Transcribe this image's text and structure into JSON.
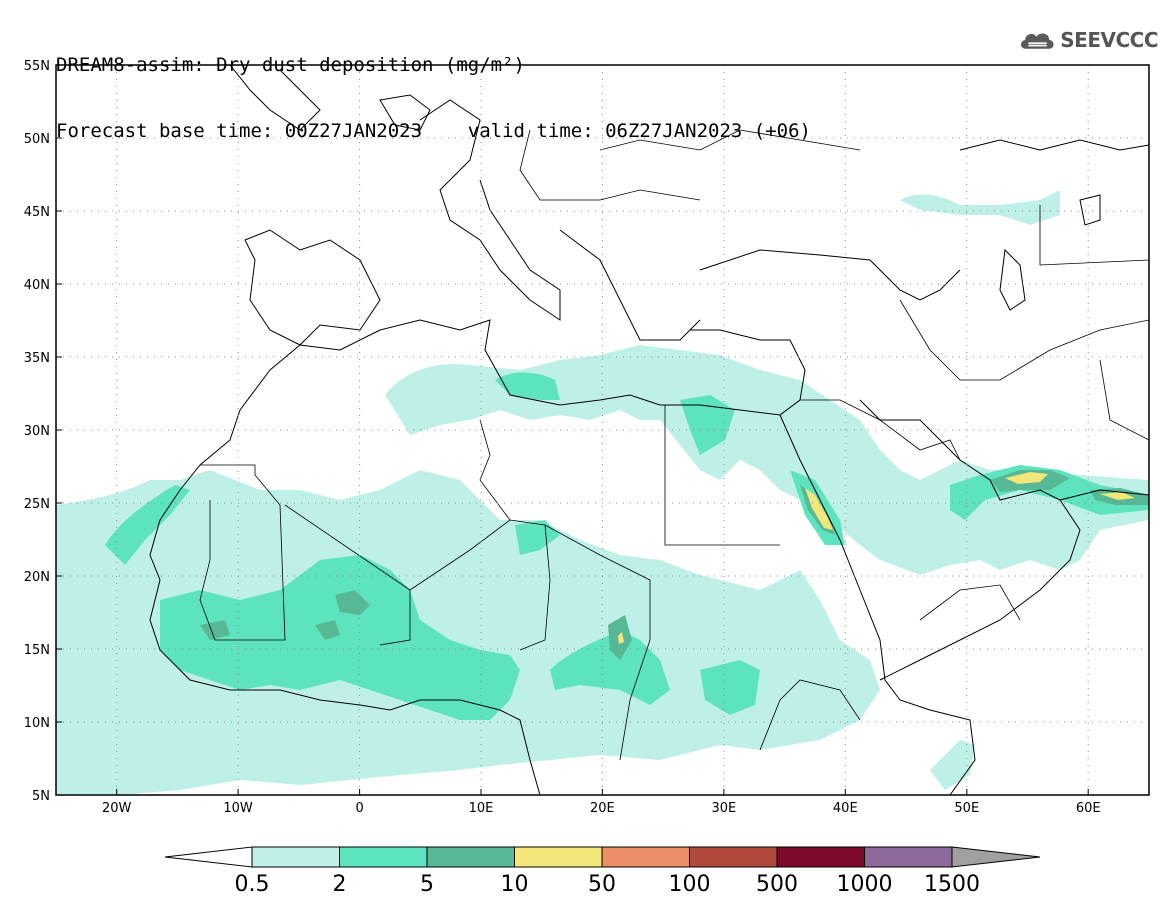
{
  "header": {
    "title_line1": "DREAM8-assim: Dry dust deposition (mg/m²)",
    "title_line2": "Forecast base time: 00Z27JAN2023    valid time: 06Z27JAN2023 (+06)"
  },
  "logo": {
    "text": "SEEVCCC",
    "icon": "cloud-icon"
  },
  "map": {
    "lon_range": [
      -25,
      65
    ],
    "lat_range": [
      5,
      55
    ],
    "lat_labels": [
      "55N",
      "50N",
      "45N",
      "40N",
      "35N",
      "30N",
      "25N",
      "20N",
      "15N",
      "10N",
      "5N"
    ],
    "lon_labels": [
      "20W",
      "10W",
      "0",
      "10E",
      "20E",
      "30E",
      "40E",
      "50E",
      "60E"
    ],
    "grid": "dotted"
  },
  "colorbar": {
    "labels": [
      "0.5",
      "2",
      "5",
      "10",
      "50",
      "100",
      "500",
      "1000",
      "1500"
    ],
    "colors": [
      "#bff0e8",
      "#5de3be",
      "#57b896",
      "#f3e77a",
      "#ea8f69",
      "#b24a3c",
      "#7d0a2a",
      "#8e6a9c",
      "#a0a0a0"
    ]
  }
}
